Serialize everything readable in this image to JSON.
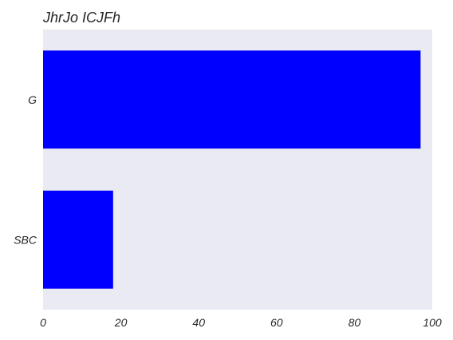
{
  "chart_data": {
    "type": "bar",
    "orientation": "horizontal",
    "title": "JhrJo ICJFh",
    "categories": [
      "G",
      "SBC"
    ],
    "values": [
      97,
      18
    ],
    "xlabel": "",
    "ylabel": "",
    "xlim": [
      0,
      100
    ],
    "xticks": [
      "0",
      "20",
      "40",
      "60",
      "80",
      "100"
    ],
    "grid": false,
    "legend": "none",
    "colors": {
      "bar": "#0000ff",
      "plot_background": "#eaeaf2"
    }
  }
}
